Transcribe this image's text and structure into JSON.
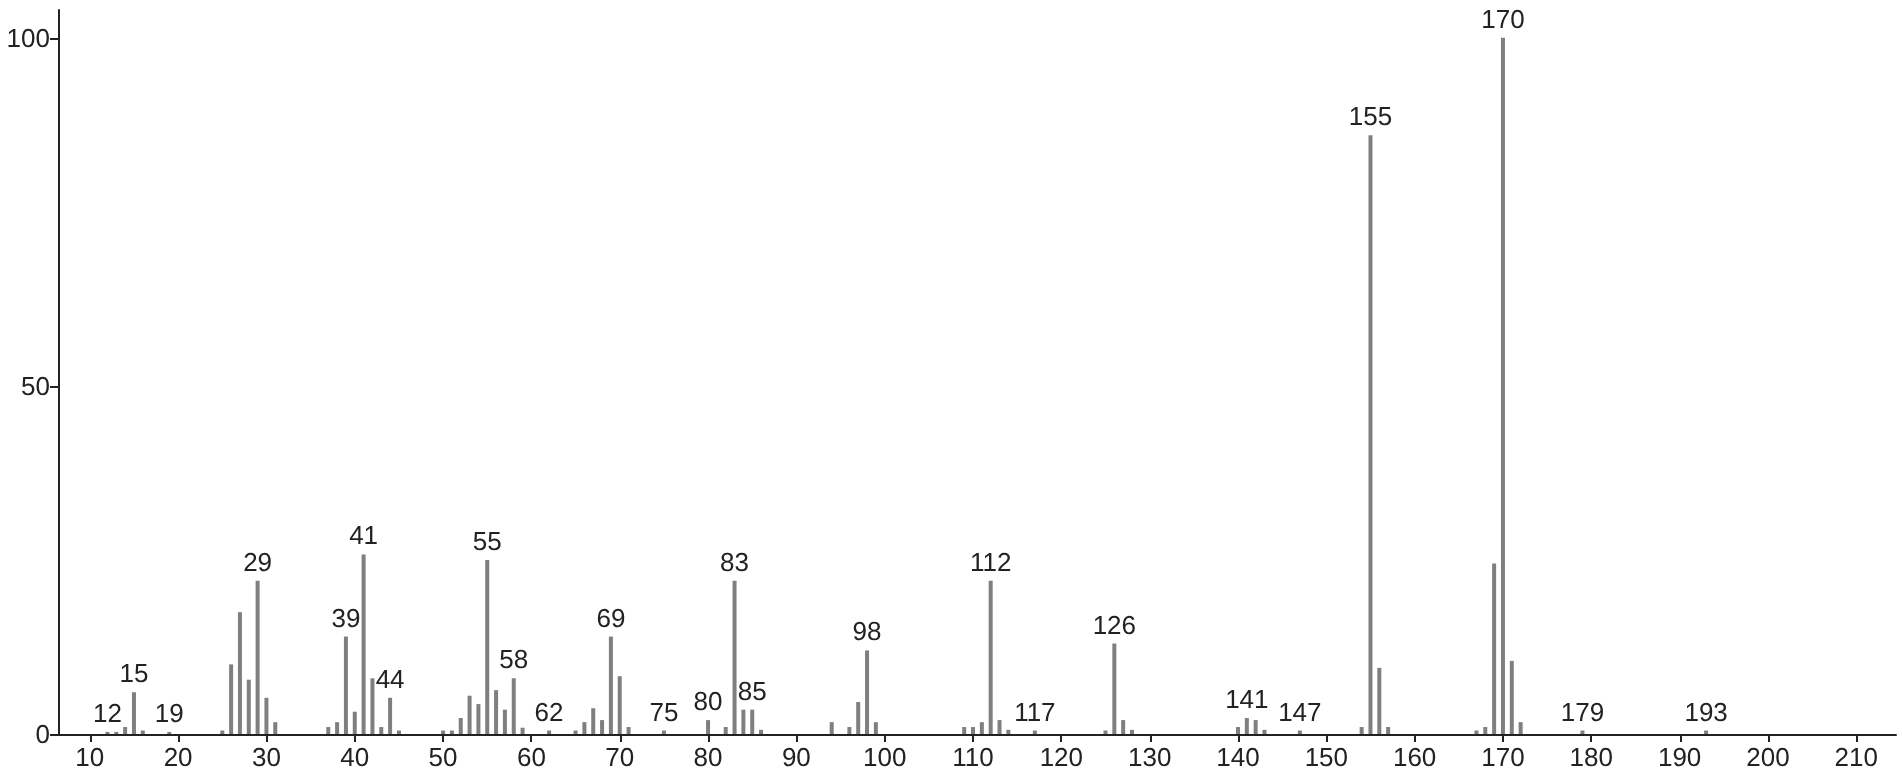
{
  "chart_data": {
    "type": "bar",
    "x": [
      12,
      13,
      14,
      15,
      16,
      19,
      25,
      26,
      27,
      28,
      29,
      30,
      31,
      37,
      38,
      39,
      40,
      41,
      42,
      43,
      44,
      45,
      50,
      51,
      52,
      53,
      54,
      55,
      56,
      57,
      58,
      59,
      62,
      65,
      66,
      67,
      68,
      69,
      70,
      71,
      75,
      80,
      82,
      83,
      84,
      85,
      86,
      94,
      96,
      97,
      98,
      99,
      109,
      110,
      111,
      112,
      113,
      114,
      117,
      125,
      126,
      127,
      128,
      140,
      141,
      142,
      143,
      147,
      154,
      155,
      156,
      157,
      167,
      168,
      169,
      170,
      171,
      172,
      179,
      193
    ],
    "values": [
      0.3,
      0.3,
      1,
      6,
      0.5,
      0.3,
      0.5,
      10,
      17.5,
      7.8,
      22,
      5.2,
      1.7,
      1,
      1.7,
      14,
      3.2,
      25.8,
      8,
      1,
      5.2,
      0.5,
      0.5,
      0.5,
      2.3,
      5.5,
      4.3,
      25,
      6.3,
      3.5,
      8,
      0.9,
      0.5,
      0.5,
      1.7,
      3.7,
      2,
      14,
      8.3,
      1,
      0.5,
      2,
      1,
      22,
      3.5,
      3.5,
      0.6,
      1.7,
      1,
      4.6,
      12,
      1.7,
      1,
      1,
      1.7,
      22,
      2,
      0.6,
      0.5,
      0.5,
      13,
      2,
      0.6,
      1,
      2.3,
      2,
      0.6,
      0.5,
      1,
      86,
      9.5,
      1,
      0.5,
      1,
      24.5,
      100,
      10.5,
      1.7,
      0.5,
      0.5
    ],
    "color": "#7f7f7f",
    "xlim": [
      6.4,
      214.5
    ],
    "xticks": [
      10,
      20,
      30,
      40,
      50,
      60,
      70,
      80,
      90,
      100,
      110,
      120,
      130,
      140,
      150,
      160,
      170,
      180,
      190,
      200,
      210
    ],
    "ylim": [
      0,
      104
    ],
    "yticks": [
      0,
      50,
      100
    ],
    "grid": false,
    "annotations": [
      {
        "text": "12",
        "x": 12,
        "y": 0.3
      },
      {
        "text": "15",
        "x": 15,
        "y": 6
      },
      {
        "text": "19",
        "x": 19,
        "y": 0.3
      },
      {
        "text": "29",
        "x": 29,
        "y": 22
      },
      {
        "text": "39",
        "x": 39,
        "y": 14
      },
      {
        "text": "41",
        "x": 41,
        "y": 25.8
      },
      {
        "text": "44",
        "x": 44,
        "y": 5.2
      },
      {
        "text": "55",
        "x": 55,
        "y": 25
      },
      {
        "text": "58",
        "x": 58,
        "y": 8
      },
      {
        "text": "62",
        "x": 62,
        "y": 0.5
      },
      {
        "text": "69",
        "x": 69,
        "y": 14
      },
      {
        "text": "75",
        "x": 75,
        "y": 0.5
      },
      {
        "text": "80",
        "x": 80,
        "y": 2
      },
      {
        "text": "83",
        "x": 83,
        "y": 22
      },
      {
        "text": "85",
        "x": 85,
        "y": 3.5
      },
      {
        "text": "98",
        "x": 98,
        "y": 12
      },
      {
        "text": "112",
        "x": 112,
        "y": 22
      },
      {
        "text": "117",
        "x": 117,
        "y": 0.5
      },
      {
        "text": "126",
        "x": 126,
        "y": 13
      },
      {
        "text": "141",
        "x": 141,
        "y": 2.3
      },
      {
        "text": "147",
        "x": 147,
        "y": 0.5
      },
      {
        "text": "155",
        "x": 155,
        "y": 86
      },
      {
        "text": "170",
        "x": 170,
        "y": 100
      },
      {
        "text": "179",
        "x": 179,
        "y": 0.5
      },
      {
        "text": "193",
        "x": 193,
        "y": 0.5
      }
    ]
  }
}
